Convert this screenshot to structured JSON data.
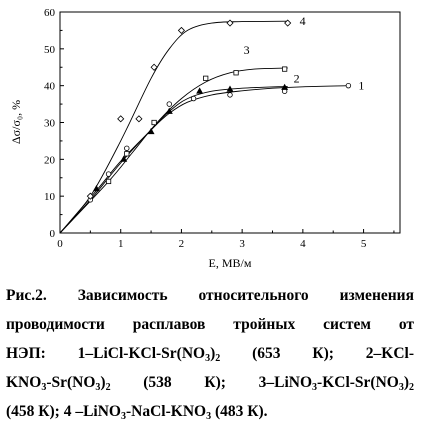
{
  "chart_data": {
    "type": "line",
    "xlabel": "E, МВ/м",
    "ylabel": "Δσ/σ₀, %",
    "xlim": [
      0,
      5.6
    ],
    "ylim": [
      0,
      60
    ],
    "xticks": [
      "0",
      "1",
      "2",
      "3",
      "4",
      "5"
    ],
    "yticks": [
      "0",
      "10",
      "20",
      "30",
      "40",
      "50",
      "60"
    ],
    "grid": false,
    "series": [
      {
        "name": "1",
        "marker": "circle-open",
        "points": [
          [
            0.5,
            9
          ],
          [
            0.8,
            16
          ],
          [
            1.1,
            23
          ],
          [
            1.8,
            35
          ],
          [
            2.2,
            36.5
          ],
          [
            2.8,
            37.5
          ],
          [
            3.7,
            38.5
          ],
          [
            4.75,
            40
          ]
        ],
        "curve": [
          [
            0,
            0
          ],
          [
            0.5,
            9
          ],
          [
            1.0,
            19
          ],
          [
            1.5,
            28
          ],
          [
            1.8,
            32.5
          ],
          [
            2.1,
            35.5
          ],
          [
            2.5,
            37.5
          ],
          [
            3.0,
            38.6
          ],
          [
            3.5,
            39.3
          ],
          [
            4.0,
            39.7
          ],
          [
            4.75,
            40
          ]
        ]
      },
      {
        "name": "2",
        "marker": "triangle-filled",
        "points": [
          [
            0.6,
            12
          ],
          [
            1.05,
            20
          ],
          [
            1.5,
            27.5
          ],
          [
            1.8,
            33
          ],
          [
            2.3,
            38.5
          ],
          [
            2.8,
            39
          ],
          [
            3.7,
            39.5
          ]
        ],
        "curve": [
          [
            0,
            0
          ],
          [
            0.6,
            11.5
          ],
          [
            1.0,
            19.5
          ],
          [
            1.5,
            28
          ],
          [
            1.8,
            33
          ],
          [
            2.1,
            36.5
          ],
          [
            2.5,
            38.5
          ],
          [
            3.0,
            39.3
          ],
          [
            3.75,
            39.8
          ]
        ]
      },
      {
        "name": "3",
        "marker": "square-open",
        "points": [
          [
            0.8,
            14
          ],
          [
            1.1,
            21.5
          ],
          [
            1.55,
            30
          ],
          [
            2.4,
            42
          ],
          [
            2.9,
            43.5
          ],
          [
            3.7,
            44.5
          ]
        ],
        "curve": [
          [
            0,
            0
          ],
          [
            0.8,
            14
          ],
          [
            1.2,
            22
          ],
          [
            1.6,
            30
          ],
          [
            2.0,
            36.5
          ],
          [
            2.4,
            41
          ],
          [
            2.8,
            43.5
          ],
          [
            3.2,
            44.5
          ],
          [
            3.75,
            44.8
          ]
        ]
      },
      {
        "name": "4",
        "marker": "diamond-open",
        "points": [
          [
            0.5,
            10
          ],
          [
            1.0,
            31
          ],
          [
            1.3,
            31
          ],
          [
            1.55,
            45
          ],
          [
            2.0,
            55
          ],
          [
            2.8,
            57
          ],
          [
            3.75,
            57
          ]
        ],
        "curve": [
          [
            0,
            0
          ],
          [
            0.5,
            10
          ],
          [
            1.0,
            25
          ],
          [
            1.5,
            42
          ],
          [
            1.8,
            50
          ],
          [
            2.1,
            55
          ],
          [
            2.5,
            57
          ],
          [
            3.0,
            57.4
          ],
          [
            3.75,
            57.5
          ]
        ]
      }
    ]
  },
  "caption": {
    "lines": [
      [
        {
          "t": "Рис.2. Зависимость относительного изменения"
        }
      ],
      [
        {
          "t": "проводимости расплавов тройных систем от"
        }
      ],
      [
        {
          "t": "НЭП: 1–LiCl-KCl-Sr(NO"
        },
        {
          "sub": "3"
        },
        {
          "t": ")"
        },
        {
          "sub": "2"
        },
        {
          "t": " (653 К); 2–KCl-"
        }
      ],
      [
        {
          "t": "KNO"
        },
        {
          "sub": "3"
        },
        {
          "t": "-Sr(NO"
        },
        {
          "sub": "3"
        },
        {
          "t": ")"
        },
        {
          "sub": "2"
        },
        {
          "t": " (538 К); 3–LiNO"
        },
        {
          "sub": "3"
        },
        {
          "t": "-KCl-Sr(NO"
        },
        {
          "sub": "3"
        },
        {
          "t": ")"
        },
        {
          "sub": "2"
        }
      ],
      [
        {
          "t": "(458 К); 4 –LiNO"
        },
        {
          "sub": "3"
        },
        {
          "t": "-NaCl-KNO"
        },
        {
          "sub": "3"
        },
        {
          "t": " (483 К)."
        }
      ]
    ]
  }
}
